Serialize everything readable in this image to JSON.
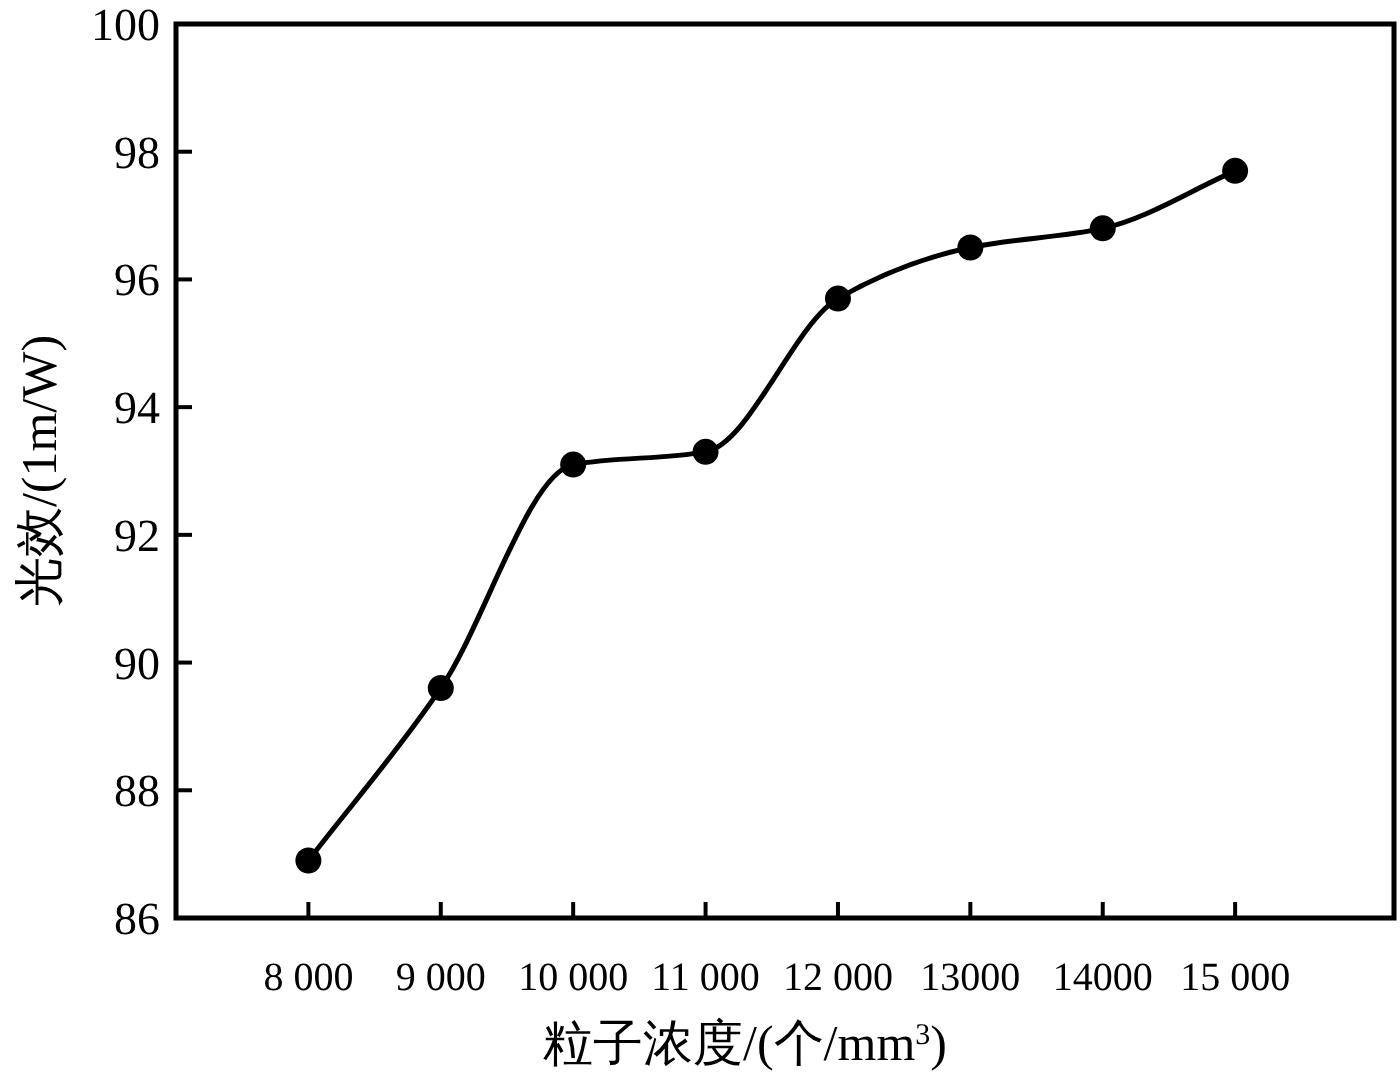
{
  "chart_data": {
    "type": "line",
    "xlabel": "粒子浓度/(个/mm$^{3}$)",
    "ylabel": "光效/(1m/W)",
    "x": [
      8000,
      9000,
      10000,
      11000,
      12000,
      13000,
      14000,
      15000
    ],
    "series": [
      {
        "color": "#000000",
        "values": [
          86.9,
          89.6,
          93.1,
          93.3,
          95.7,
          96.5,
          96.8,
          97.7
        ]
      }
    ],
    "xlim": [
      7000,
      16200
    ],
    "xticks": [
      {
        "value": 8000,
        "label": "8 000"
      },
      {
        "value": 9000,
        "label": "9 000"
      },
      {
        "value": 10000,
        "label": "10 000"
      },
      {
        "value": 11000,
        "label": "11 000"
      },
      {
        "value": 12000,
        "label": "12 000"
      },
      {
        "value": 13000,
        "label": "13000"
      },
      {
        "value": 14000,
        "label": "14000"
      },
      {
        "value": 15000,
        "label": "15 000"
      }
    ],
    "ylim": [
      86,
      100
    ],
    "yticks": [
      86,
      88,
      90,
      92,
      94,
      96,
      98,
      100
    ],
    "grid": false,
    "marker": "circle",
    "line_style": "solid"
  }
}
